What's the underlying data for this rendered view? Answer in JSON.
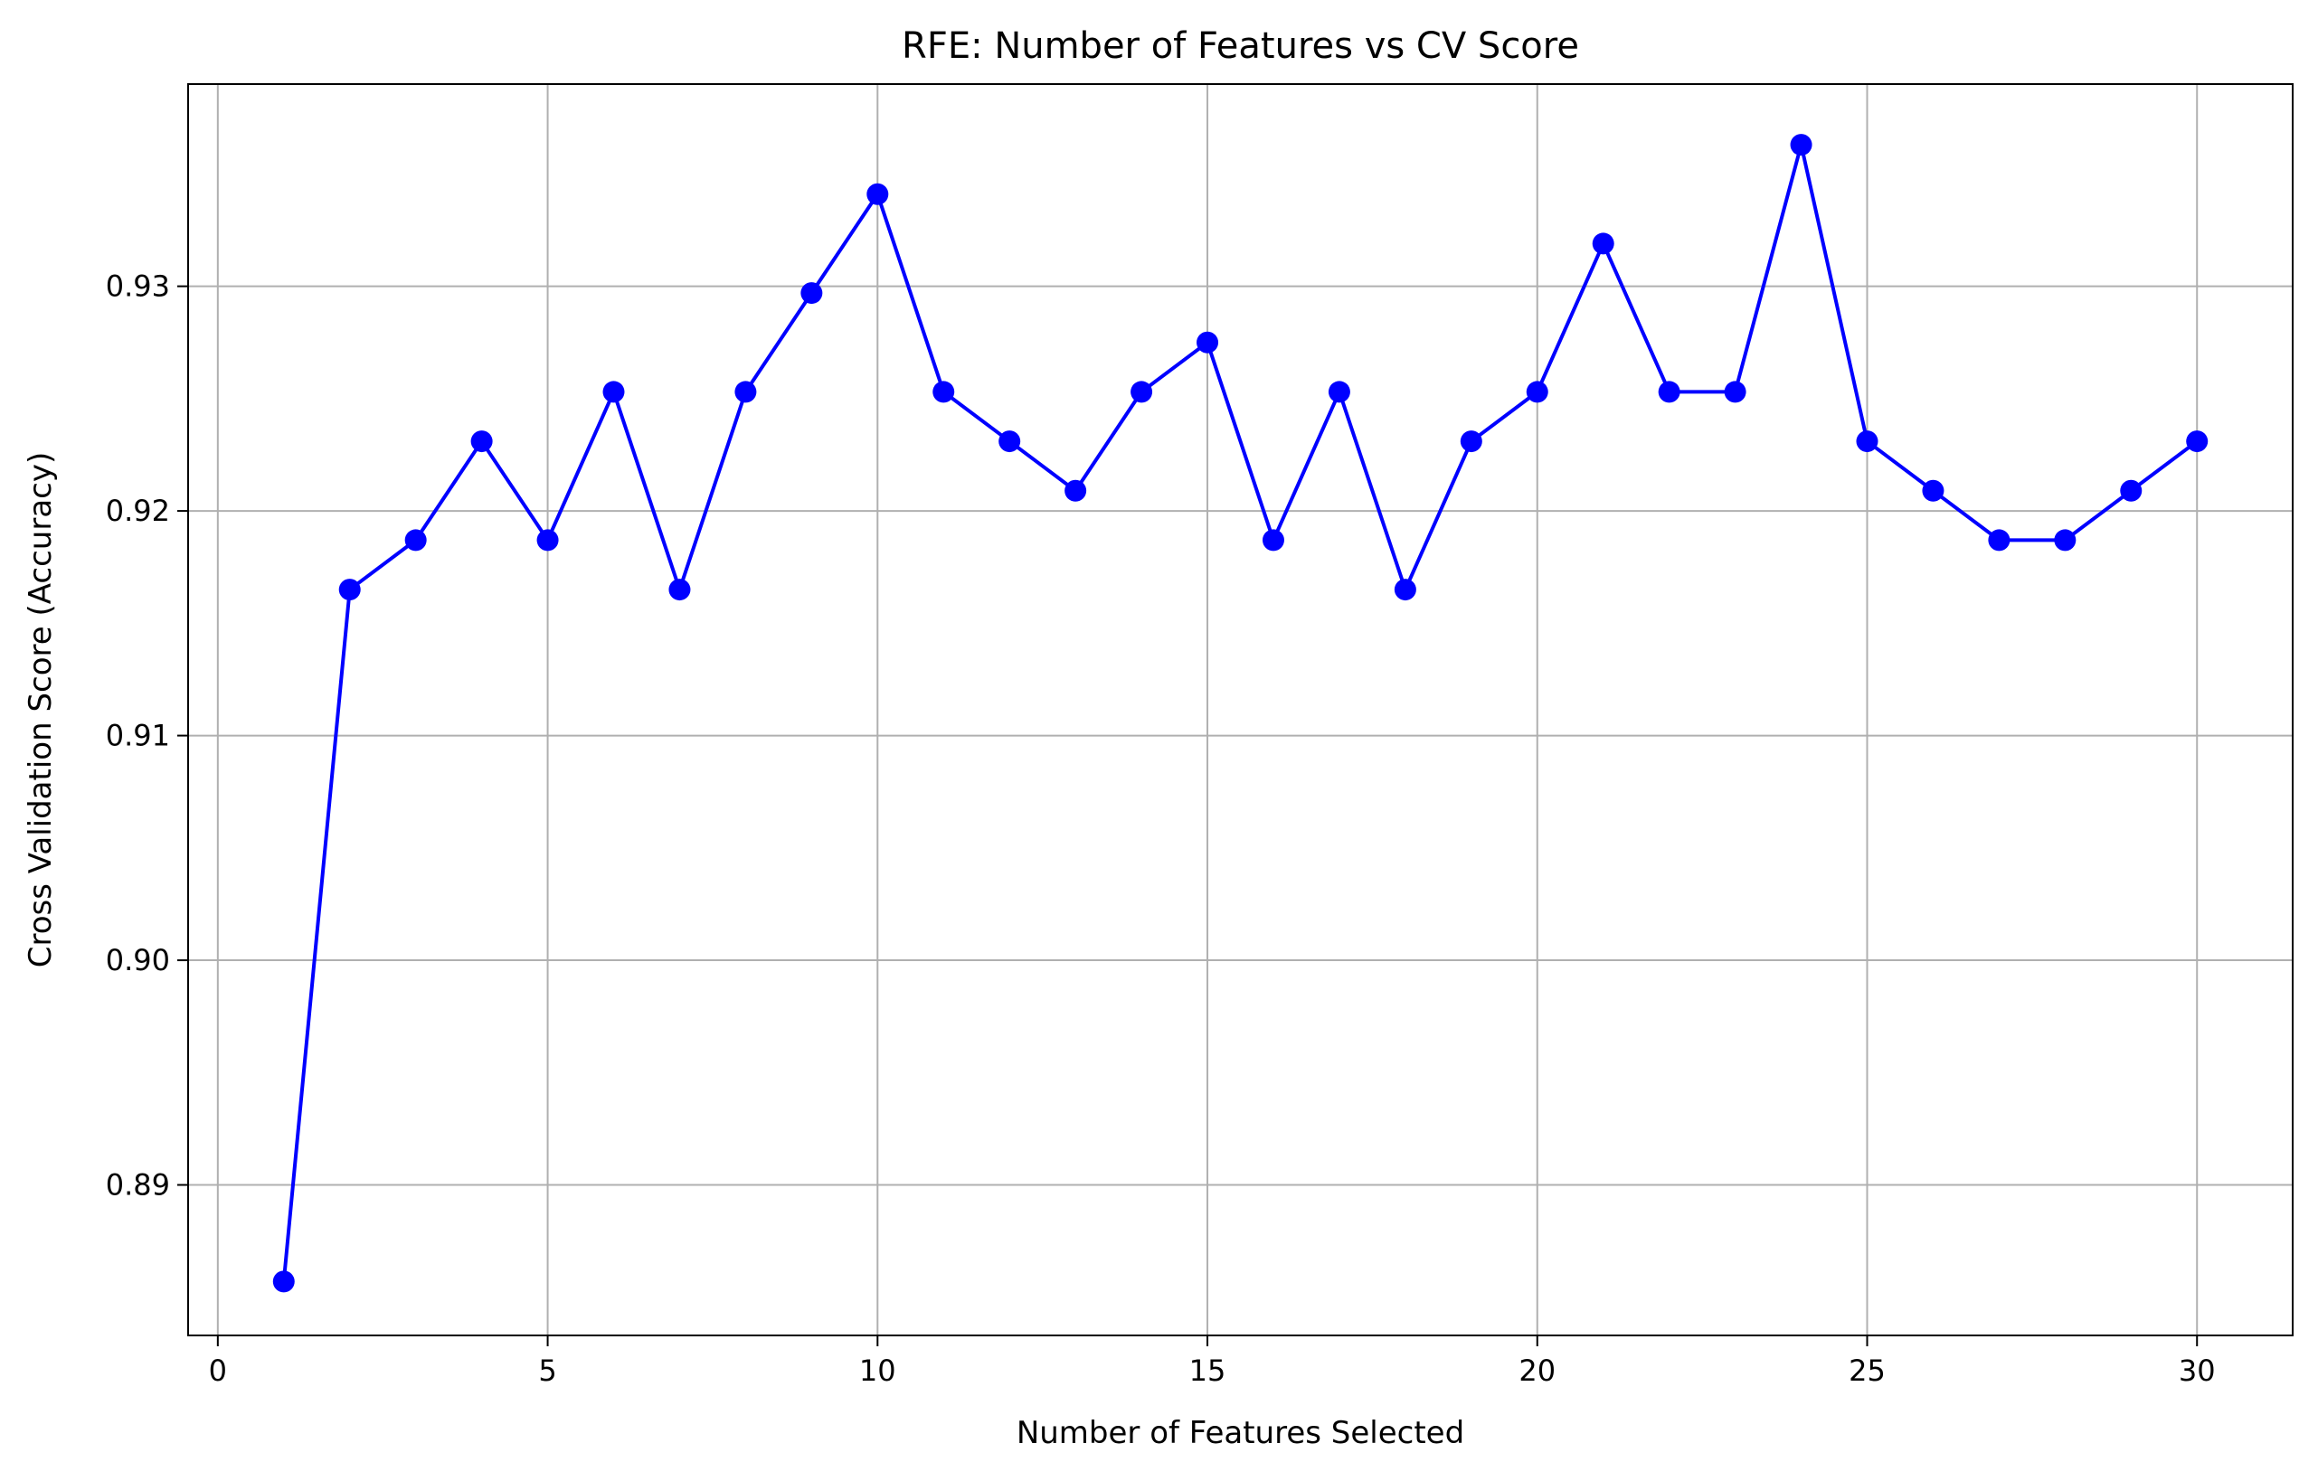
{
  "chart_data": {
    "type": "line",
    "title": "RFE: Number of Features vs CV Score",
    "xlabel": "Number of Features Selected",
    "ylabel": "Cross Validation Score (Accuracy)",
    "xlim": [
      -0.45,
      31.45
    ],
    "ylim": [
      0.8833,
      0.939
    ],
    "xticks": [
      0,
      5,
      10,
      15,
      20,
      25,
      30
    ],
    "xtick_labels": [
      "0",
      "5",
      "10",
      "15",
      "20",
      "25",
      "30"
    ],
    "yticks": [
      0.89,
      0.9,
      0.91,
      0.92,
      0.93
    ],
    "ytick_labels": [
      "0.89",
      "0.90",
      "0.91",
      "0.92",
      "0.93"
    ],
    "grid": true,
    "marker": "circle",
    "series": [
      {
        "color": "#0000ff",
        "x": [
          1,
          2,
          3,
          4,
          5,
          6,
          7,
          8,
          9,
          10,
          11,
          12,
          13,
          14,
          15,
          16,
          17,
          18,
          19,
          20,
          21,
          22,
          23,
          24,
          25,
          26,
          27,
          28,
          29,
          30
        ],
        "y": [
          0.8857,
          0.9165,
          0.9187,
          0.9231,
          0.9187,
          0.9253,
          0.9165,
          0.9253,
          0.9297,
          0.9341,
          0.9253,
          0.9231,
          0.9209,
          0.9253,
          0.9275,
          0.9187,
          0.9253,
          0.9165,
          0.9231,
          0.9253,
          0.9319,
          0.9253,
          0.9253,
          0.9363,
          0.9231,
          0.9209,
          0.9187,
          0.9187,
          0.9209,
          0.9231
        ]
      }
    ]
  }
}
